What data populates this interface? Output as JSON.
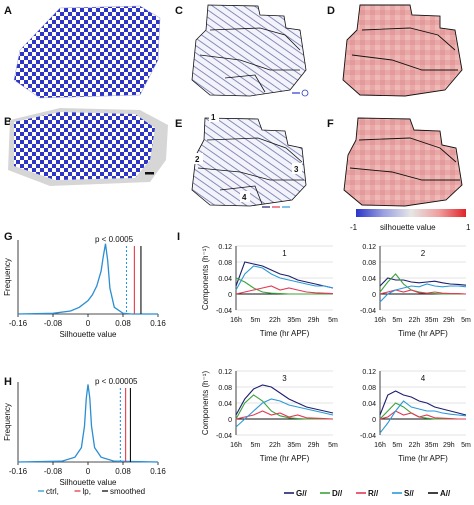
{
  "panel_letters": [
    "A",
    "B",
    "C",
    "D",
    "E",
    "F",
    "G",
    "H",
    "I"
  ],
  "colorbar": {
    "min_label": "-1",
    "max_label": "1",
    "caption": "silhouette value",
    "colors": [
      "#2b35c9",
      "#9aa0e0",
      "#e6e6e6",
      "#f0a0a0",
      "#e0242a"
    ]
  },
  "region_numbers": [
    "1",
    "2",
    "3",
    "4"
  ],
  "chart_data": [
    {
      "id": "G",
      "type": "line",
      "title": "p < 0.0005",
      "xlabel": "Silhouette value",
      "ylabel": "Frequency",
      "xlim": [
        -0.16,
        0.16
      ],
      "xticks": [
        "-0.16",
        "-0.08",
        "0",
        "0.08",
        "0.16"
      ],
      "x": [
        -0.16,
        -0.08,
        -0.04,
        -0.02,
        0,
        0.01,
        0.02,
        0.03,
        0.035,
        0.04,
        0.045,
        0.05,
        0.06,
        0.08,
        0.1,
        0.16
      ],
      "y": [
        0,
        0.01,
        0.04,
        0.09,
        0.18,
        0.26,
        0.38,
        0.58,
        0.78,
        0.95,
        0.72,
        0.35,
        0.09,
        0.01,
        0,
        0
      ],
      "vlines": [
        {
          "x": 0.088,
          "style": "dotted",
          "color": "#2a9ad8"
        },
        {
          "x": 0.106,
          "style": "solid",
          "color": "#e33a45"
        },
        {
          "x": 0.121,
          "style": "solid",
          "color": "#111111"
        }
      ]
    },
    {
      "id": "H",
      "type": "line",
      "title": "p < 0.00005",
      "xlabel": "Silhouette value",
      "ylabel": "Frequency",
      "xlim": [
        -0.16,
        0.16
      ],
      "xticks": [
        "-0.16",
        "-0.08",
        "0",
        "0.08",
        "0.16"
      ],
      "x": [
        -0.16,
        -0.06,
        -0.03,
        -0.015,
        -0.008,
        -0.004,
        0,
        0.004,
        0.008,
        0.015,
        0.03,
        0.06,
        0.16
      ],
      "y": [
        0,
        0.01,
        0.06,
        0.18,
        0.45,
        0.8,
        0.97,
        0.8,
        0.45,
        0.18,
        0.06,
        0.01,
        0
      ],
      "vlines": [
        {
          "x": 0.074,
          "style": "dotted",
          "color": "#2a9ad8"
        },
        {
          "x": 0.086,
          "style": "solid",
          "color": "#e33a45"
        },
        {
          "x": 0.097,
          "style": "solid",
          "color": "#111111"
        }
      ],
      "legend": [
        {
          "name": "ctrl,",
          "color": "#2a9ad8"
        },
        {
          "name": "lp,",
          "color": "#e33a45"
        },
        {
          "name": "smoothed",
          "color": "#111111"
        }
      ]
    },
    {
      "id": "I",
      "type": "line",
      "xlabel": "Time (hr APF)",
      "ylabel": "Components (h⁻¹)",
      "ylim": [
        -0.04,
        0.12
      ],
      "yticks": [
        "0.12",
        "0.08",
        "0.04",
        "0",
        "-0.04"
      ],
      "xticks": [
        "16h",
        "5m",
        "22h",
        "35m",
        "29h",
        "5m"
      ],
      "subplots": [
        {
          "title": "1",
          "series": [
            {
              "name": "G//",
              "color": "#1d1f6e",
              "values": [
                0.02,
                0.08,
                0.075,
                0.07,
                0.06,
                0.05,
                0.045,
                0.035,
                0.03,
                0.025,
                0.02,
                0.015
              ]
            },
            {
              "name": "D//",
              "color": "#3aa33a",
              "values": [
                0.04,
                0.03,
                0.015,
                0.005,
                0.002,
                0.001,
                0,
                0,
                0,
                0,
                0,
                0
              ]
            },
            {
              "name": "R//",
              "color": "#e33a55",
              "values": [
                0,
                0.005,
                0.01,
                0.015,
                0.02,
                0.01,
                0.015,
                0.01,
                0.005,
                0.003,
                0.002,
                0.001
              ]
            },
            {
              "name": "S//",
              "color": "#2a9ad8",
              "values": [
                0.01,
                0.05,
                0.07,
                0.065,
                0.05,
                0.04,
                0.035,
                0.03,
                0.025,
                0.02,
                0.02,
                0.015
              ]
            }
          ]
        },
        {
          "title": "2",
          "series": [
            {
              "name": "G//",
              "color": "#1d1f6e",
              "values": [
                0.02,
                0.04,
                0.035,
                0.035,
                0.03,
                0.028,
                0.03,
                0.032,
                0.028,
                0.025,
                0.024,
                0.022
              ]
            },
            {
              "name": "D//",
              "color": "#3aa33a",
              "values": [
                0.005,
                0.03,
                0.05,
                0.025,
                0.01,
                0.005,
                0.002,
                0.001,
                0,
                0,
                0,
                0
              ]
            },
            {
              "name": "R//",
              "color": "#e33a55",
              "values": [
                0,
                0.005,
                0.01,
                0.005,
                0.01,
                0.003,
                0.002,
                0.005,
                0.002,
                0.001,
                0.001,
                0
              ]
            },
            {
              "name": "S//",
              "color": "#2a9ad8",
              "values": [
                -0.02,
                0,
                0.01,
                0.015,
                0.02,
                0.018,
                0.025,
                0.02,
                0.018,
                0.02,
                0.02,
                0.018
              ]
            }
          ]
        },
        {
          "title": "3",
          "series": [
            {
              "name": "G//",
              "color": "#1d1f6e",
              "values": [
                0.01,
                0.05,
                0.075,
                0.085,
                0.08,
                0.065,
                0.05,
                0.04,
                0.03,
                0.025,
                0.02,
                0.015
              ]
            },
            {
              "name": "D//",
              "color": "#3aa33a",
              "values": [
                0,
                0.04,
                0.06,
                0.045,
                0.02,
                0.008,
                0.003,
                0.001,
                0,
                0,
                0,
                0
              ]
            },
            {
              "name": "R//",
              "color": "#e33a55",
              "values": [
                0,
                0.005,
                0.01,
                0.02,
                0.01,
                0.015,
                0.005,
                0.01,
                0.003,
                0.002,
                0.001,
                0
              ]
            },
            {
              "name": "S//",
              "color": "#2a9ad8",
              "values": [
                -0.02,
                0,
                0.02,
                0.04,
                0.05,
                0.045,
                0.035,
                0.03,
                0.025,
                0.02,
                0.015,
                0.01
              ]
            }
          ]
        },
        {
          "title": "4",
          "series": [
            {
              "name": "G//",
              "color": "#1d1f6e",
              "values": [
                0.01,
                0.06,
                0.07,
                0.06,
                0.055,
                0.045,
                0.04,
                0.03,
                0.025,
                0.02,
                0.015,
                0.01
              ]
            },
            {
              "name": "D//",
              "color": "#3aa33a",
              "values": [
                0,
                0.02,
                0.04,
                0.03,
                0.015,
                0.005,
                0.002,
                0,
                0,
                0,
                0,
                0
              ]
            },
            {
              "name": "R//",
              "color": "#e33a55",
              "values": [
                0,
                0.005,
                0.02,
                0.01,
                0.015,
                0.005,
                0.01,
                0.003,
                0.002,
                0.001,
                0,
                0
              ]
            },
            {
              "name": "S//",
              "color": "#2a9ad8",
              "values": [
                -0.035,
                -0.01,
                0.02,
                0.045,
                0.03,
                0.025,
                0.02,
                0.02,
                0.015,
                0.012,
                0.01,
                0.008
              ]
            }
          ]
        }
      ],
      "legend": [
        {
          "name": "G//",
          "color": "#1d1f6e"
        },
        {
          "name": "D//",
          "color": "#3aa33a"
        },
        {
          "name": "R//",
          "color": "#e33a55"
        },
        {
          "name": "S//",
          "color": "#2a9ad8"
        },
        {
          "name": "A//",
          "color": "#111111"
        }
      ]
    }
  ]
}
